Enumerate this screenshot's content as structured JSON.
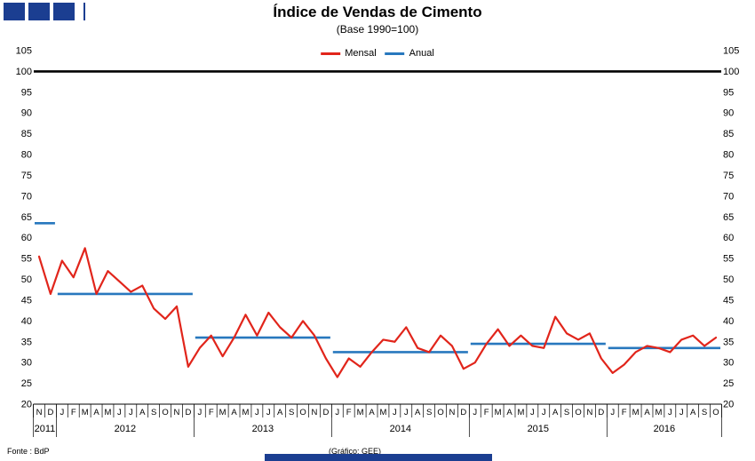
{
  "footer": {
    "source": "Fonte : BdP",
    "credit": "(Gráfico: GEE)"
  },
  "colors": {
    "logo": "#1b3e91",
    "mensal": "#e1251b",
    "anual": "#2878be",
    "reference": "#000000"
  },
  "chart_data": {
    "type": "line",
    "title": "Índice de Vendas de Cimento",
    "subtitle": "(Base 1990=100)",
    "ylabel": "",
    "xlabel": "",
    "ylim": [
      20,
      105
    ],
    "ytick_step": 5,
    "reference_line": 100,
    "grid": false,
    "legend_position": "top",
    "months": [
      "N",
      "D",
      "J",
      "F",
      "M",
      "A",
      "M",
      "J",
      "J",
      "A",
      "S",
      "O",
      "N",
      "D",
      "J",
      "F",
      "M",
      "A",
      "M",
      "J",
      "J",
      "A",
      "S",
      "O",
      "N",
      "D",
      "J",
      "F",
      "M",
      "A",
      "M",
      "J",
      "J",
      "A",
      "S",
      "O",
      "N",
      "D",
      "J",
      "F",
      "M",
      "A",
      "M",
      "J",
      "J",
      "A",
      "S",
      "O",
      "N",
      "D",
      "J",
      "F",
      "M",
      "A",
      "M",
      "J",
      "J",
      "A",
      "S",
      "O"
    ],
    "years": [
      {
        "label": "2011",
        "months": 2
      },
      {
        "label": "2012",
        "months": 12
      },
      {
        "label": "2013",
        "months": 12
      },
      {
        "label": "2014",
        "months": 12
      },
      {
        "label": "2015",
        "months": 12
      },
      {
        "label": "2016",
        "months": 10
      }
    ],
    "series": [
      {
        "name": "Mensal",
        "type": "line",
        "color": "#e1251b",
        "values": [
          55.5,
          46.5,
          54.5,
          50.5,
          57.5,
          46.5,
          52,
          49.5,
          47,
          48.5,
          43,
          40.5,
          43.5,
          29,
          33.5,
          36.5,
          31.5,
          36,
          41.5,
          36.5,
          42,
          38.5,
          36,
          40,
          36.5,
          31,
          26.5,
          31,
          29,
          32.5,
          35.5,
          35,
          38.5,
          33.5,
          32.5,
          36.5,
          34,
          28.5,
          30,
          34.5,
          38,
          34,
          36.5,
          34,
          33.5,
          41,
          37,
          35.5,
          37,
          31,
          27.5,
          29.5,
          32.5,
          34,
          33.5,
          32.5,
          35.5,
          36.5,
          34,
          36
        ]
      },
      {
        "name": "Anual",
        "type": "horizontal-segments",
        "color": "#2878be",
        "segments": [
          {
            "label": "2011",
            "value": 63.5
          },
          {
            "label": "2012",
            "value": 46.5
          },
          {
            "label": "2013",
            "value": 36
          },
          {
            "label": "2014",
            "value": 32.5
          },
          {
            "label": "2015",
            "value": 34.5
          },
          {
            "label": "2016",
            "value": 33.5
          }
        ]
      }
    ]
  }
}
